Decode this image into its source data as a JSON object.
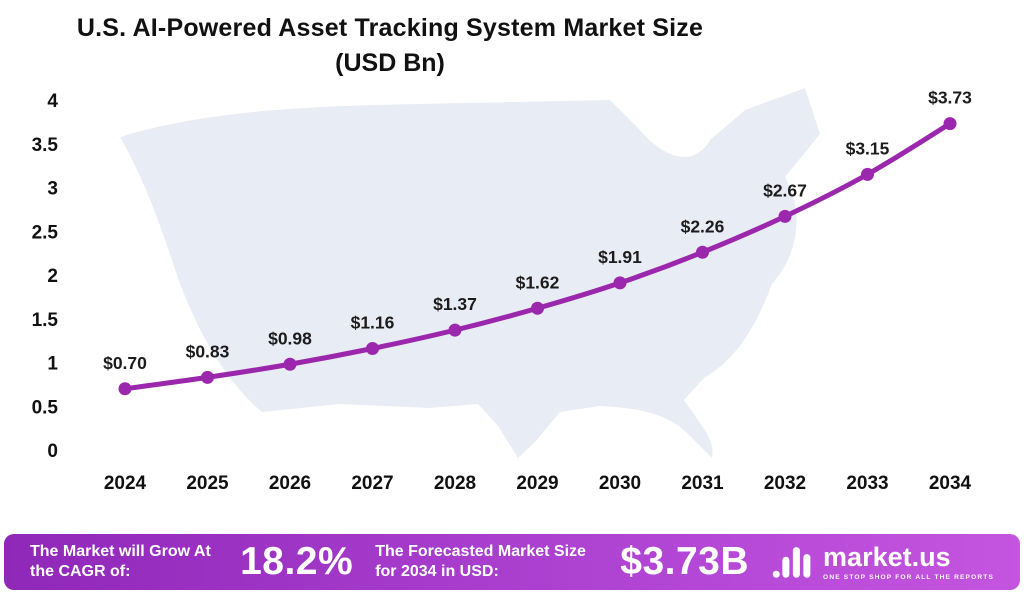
{
  "chart_data": {
    "type": "line",
    "title": "U.S. AI-Powered Asset Tracking System Market Size",
    "subtitle": "(USD Bn)",
    "x": [
      "2024",
      "2025",
      "2026",
      "2027",
      "2028",
      "2029",
      "2030",
      "2031",
      "2032",
      "2033",
      "2034"
    ],
    "values": [
      0.7,
      0.83,
      0.98,
      1.16,
      1.37,
      1.62,
      1.91,
      2.26,
      2.67,
      3.15,
      3.73
    ],
    "point_labels": [
      "$0.70",
      "$0.83",
      "$0.98",
      "$1.16",
      "$1.37",
      "$1.62",
      "$1.91",
      "$2.26",
      "$2.67",
      "$3.15",
      "$3.73"
    ],
    "xlabel": "",
    "ylabel": "",
    "ylim": [
      0,
      4
    ],
    "yticks": [
      0,
      0.5,
      1,
      1.5,
      2,
      2.5,
      3,
      3.5,
      4
    ],
    "ytick_labels": [
      "0",
      "0.5",
      "1",
      "1.5",
      "2",
      "2.5",
      "3",
      "3.5",
      "4"
    ],
    "grid": false,
    "legend": "none",
    "line_color": "#9b27ad",
    "marker_color": "#9b27ad",
    "background_map": "united-states-silhouette",
    "map_color": "#e8ecf4"
  },
  "footer": {
    "cagr_label": "The Market will Grow At the CAGR of:",
    "cagr_value": "18.2%",
    "forecast_label": "The Forecasted Market Size for 2034 in USD:",
    "forecast_value": "$3.73B",
    "brand": "market.us",
    "tagline": "ONE STOP SHOP FOR ALL THE REPORTS",
    "gradient_left": "#8f27b8",
    "gradient_right": "#c455e0"
  }
}
